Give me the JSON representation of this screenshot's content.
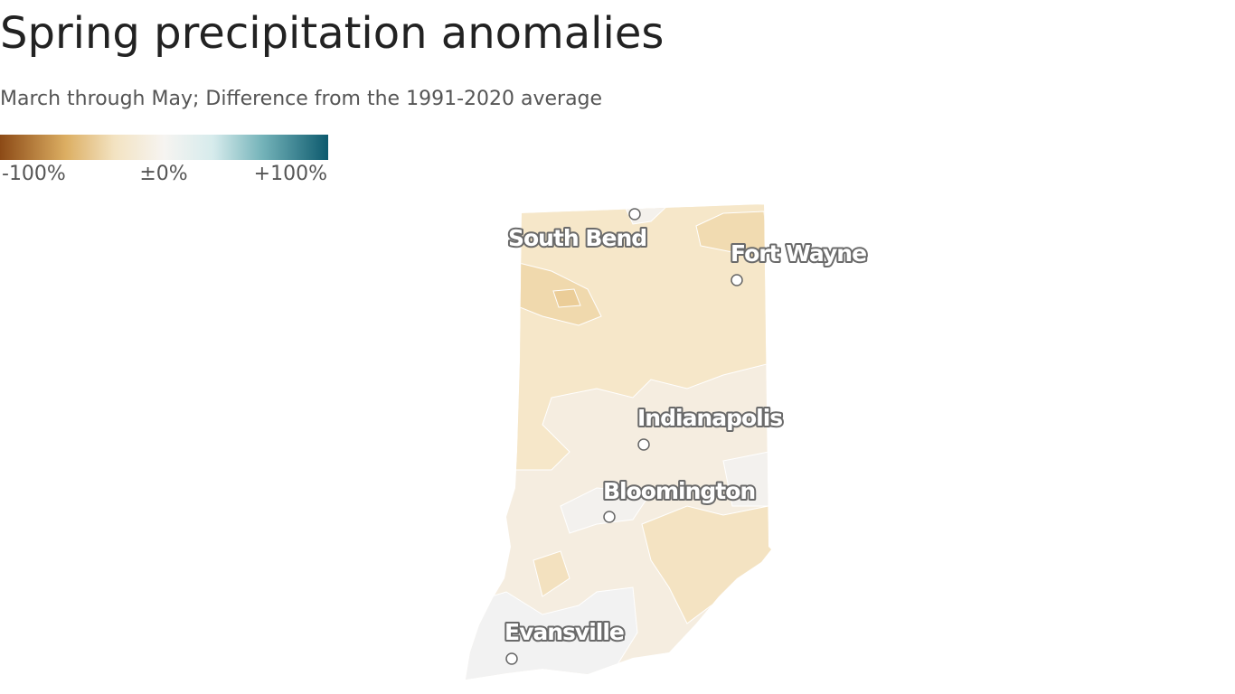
{
  "header": {
    "title": "Spring precipitation anomalies",
    "subtitle": "March through May; Difference from the 1991-2020 average"
  },
  "legend": {
    "labels": [
      "-100%",
      "±0%",
      "+100%"
    ]
  },
  "cities": [
    {
      "name": "South Bend"
    },
    {
      "name": "Fort Wayne"
    },
    {
      "name": "Indianapolis"
    },
    {
      "name": "Bloomington"
    },
    {
      "name": "Evansville"
    }
  ]
}
